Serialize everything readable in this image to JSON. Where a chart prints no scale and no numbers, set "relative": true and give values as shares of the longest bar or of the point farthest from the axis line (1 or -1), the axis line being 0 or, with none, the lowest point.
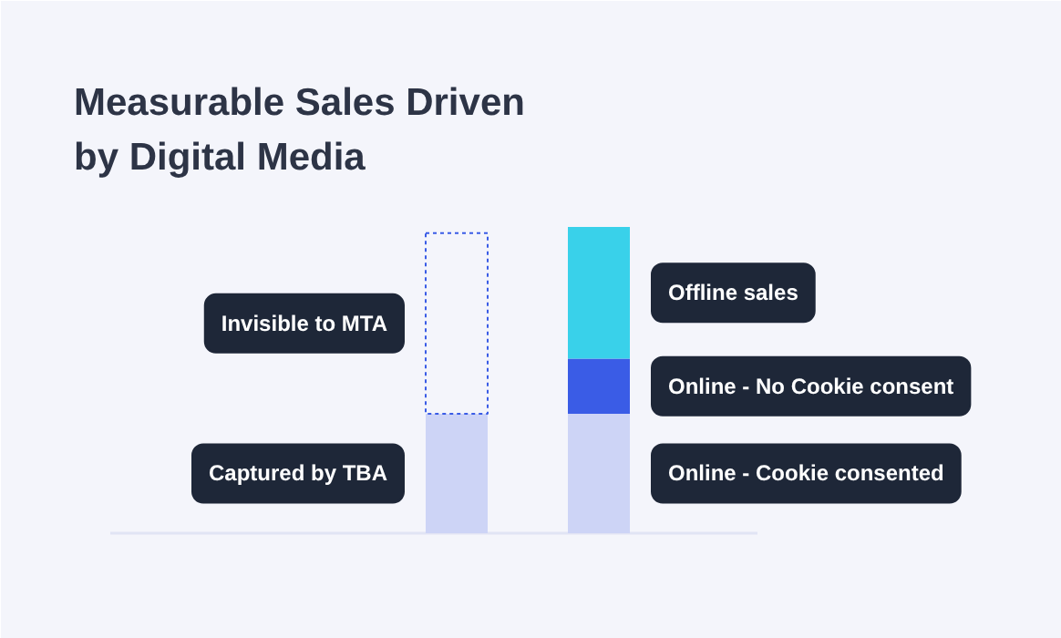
{
  "chart_data": {
    "type": "bar",
    "title": "Measurable Sales Driven\nby Digital Media",
    "relative": true,
    "stacked": true,
    "categories": [
      null,
      null
    ],
    "series": [
      {
        "name": "Captured by TBA",
        "color": "#cdd4f6",
        "values": [
          0.39,
          null
        ]
      },
      {
        "name": "Invisible to MTA",
        "color": "#3a5ce6",
        "line_style": "dashed",
        "values": [
          0.59,
          null
        ]
      },
      {
        "name": "Online - Cookie consented",
        "color": "#cdd4f6",
        "values": [
          null,
          0.39
        ]
      },
      {
        "name": "Online - No Cookie consent",
        "color": "#3a5ce6",
        "values": [
          null,
          0.18
        ]
      },
      {
        "name": "Offline sales",
        "color": "#39d1ea",
        "values": [
          null,
          0.43
        ]
      }
    ]
  }
}
